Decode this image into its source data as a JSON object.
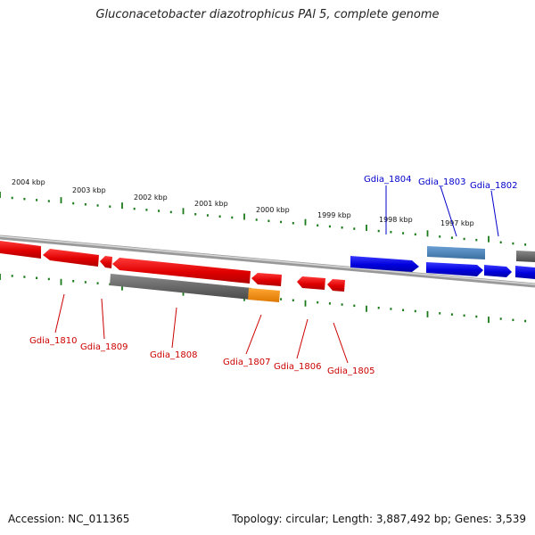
{
  "title": "Gluconacetobacter diazotrophicus PAl 5, complete genome",
  "footer": {
    "accession": "Accession: NC_011365",
    "summary": "Topology: circular; Length: 3,887,492 bp; Genes: 3,539"
  },
  "colors": {
    "reverse_gene": "#e00000",
    "forward_gene": "#0000dd",
    "reverse_label": "#cc0000",
    "forward_label": "#0000cc",
    "grey_feature": "#666666",
    "orange_feature": "#ee8800",
    "light_blue_feature": "#4a7fb5",
    "tick": "#1a7a1a",
    "backbone": "#888888"
  },
  "ruler_labels": [
    {
      "label": "2004 kbp",
      "kbp": 2004
    },
    {
      "label": "2003 kbp",
      "kbp": 2003
    },
    {
      "label": "2002 kbp",
      "kbp": 2002
    },
    {
      "label": "2001 kbp",
      "kbp": 2001
    },
    {
      "label": "2000 kbp",
      "kbp": 2000
    },
    {
      "label": "1999 kbp",
      "kbp": 1999
    },
    {
      "label": "1998 kbp",
      "kbp": 1998
    },
    {
      "label": "1997 kbp",
      "kbp": 1997
    }
  ],
  "forward_genes": [
    {
      "label": "Gdia_1804",
      "strand": "+"
    },
    {
      "label": "Gdia_1803",
      "strand": "+"
    },
    {
      "label": "Gdia_1802",
      "strand": "+"
    }
  ],
  "reverse_genes": [
    {
      "label": "Gdia_1810",
      "strand": "-"
    },
    {
      "label": "Gdia_1809",
      "strand": "-"
    },
    {
      "label": "Gdia_1808",
      "strand": "-"
    },
    {
      "label": "Gdia_1807",
      "strand": "-"
    },
    {
      "label": "Gdia_1806",
      "strand": "-"
    },
    {
      "label": "Gdia_1805",
      "strand": "-"
    }
  ]
}
